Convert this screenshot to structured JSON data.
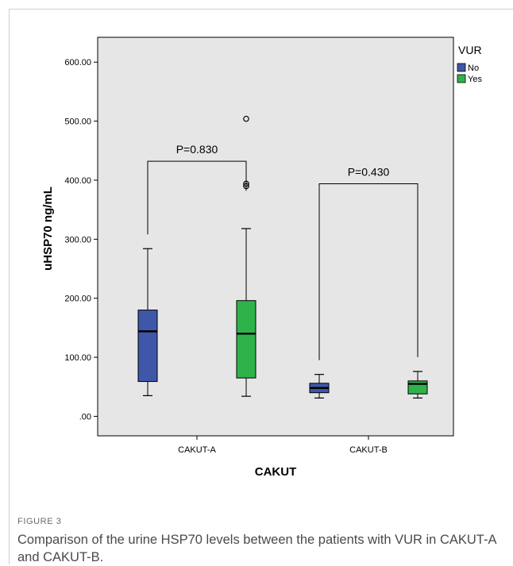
{
  "figure": {
    "label": "FIGURE 3",
    "caption": "Comparison of the urine HSP70 levels between the patients with VUR in CAKUT-A and CAKUT-B."
  },
  "chart_data": {
    "type": "boxplot",
    "xlabel": "CAKUT",
    "ylabel": "uHSP70 ng/mL",
    "ylim": [
      -33,
      642
    ],
    "yticks": [
      ".00",
      "100.00",
      "200.00",
      "300.00",
      "400.00",
      "500.00",
      "600.00"
    ],
    "ytick_values": [
      0,
      100,
      200,
      300,
      400,
      500,
      600
    ],
    "categories": [
      "CAKUT-A",
      "CAKUT-B"
    ],
    "legend": {
      "title": "VUR",
      "position": "right"
    },
    "series": [
      {
        "name": "No",
        "color": "#3f57a8",
        "boxes": [
          {
            "category": "CAKUT-A",
            "min": 35,
            "q1": 59,
            "median": 144,
            "q3": 180,
            "max": 284,
            "outliers": []
          },
          {
            "category": "CAKUT-B",
            "min": 31,
            "q1": 40,
            "median": 48,
            "q3": 56,
            "max": 71,
            "outliers": []
          }
        ]
      },
      {
        "name": "Yes",
        "color": "#2db34a",
        "boxes": [
          {
            "category": "CAKUT-A",
            "min": 34,
            "q1": 65,
            "median": 140,
            "q3": 196,
            "max": 318,
            "outliers": [
              390,
              394,
              504
            ]
          },
          {
            "category": "CAKUT-B",
            "min": 31,
            "q1": 38,
            "median": 55,
            "q3": 60,
            "max": 76,
            "outliers": []
          }
        ]
      }
    ],
    "annotations": [
      {
        "category": "CAKUT-A",
        "text": "P=0.830",
        "bracket_y": 432
      },
      {
        "category": "CAKUT-B",
        "text": "P=0.430",
        "bracket_y": 394
      }
    ],
    "background": "#e6e6e6"
  }
}
